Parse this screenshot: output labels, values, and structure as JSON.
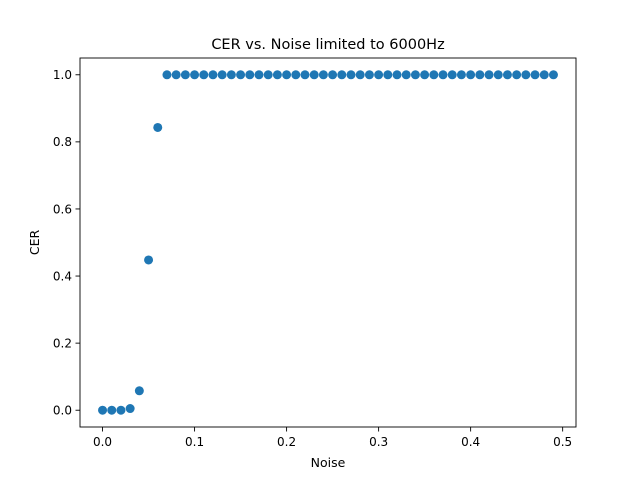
{
  "chart_data": {
    "type": "scatter",
    "title": "CER vs. Noise limited to 6000Hz",
    "xlabel": "Noise",
    "ylabel": "CER",
    "xlim": [
      -0.0245,
      0.5145
    ],
    "ylim": [
      -0.05,
      1.05
    ],
    "xticks": [
      0.0,
      0.1,
      0.2,
      0.3,
      0.4,
      0.5
    ],
    "xtick_labels": [
      "0.0",
      "0.1",
      "0.2",
      "0.3",
      "0.4",
      "0.5"
    ],
    "yticks": [
      0.0,
      0.2,
      0.4,
      0.6,
      0.8,
      1.0
    ],
    "ytick_labels": [
      "0.0",
      "0.2",
      "0.4",
      "0.6",
      "0.8",
      "1.0"
    ],
    "grid": false,
    "marker_color": "#1f77b4",
    "series": [
      {
        "x": [
          0.0,
          0.01,
          0.02,
          0.03,
          0.04,
          0.05,
          0.06,
          0.07,
          0.08,
          0.09,
          0.1,
          0.11,
          0.12,
          0.13,
          0.14,
          0.15,
          0.16,
          0.17,
          0.18,
          0.19,
          0.2,
          0.21,
          0.22,
          0.23,
          0.24,
          0.25,
          0.26,
          0.27,
          0.28,
          0.29,
          0.3,
          0.31,
          0.32,
          0.33,
          0.34,
          0.35,
          0.36,
          0.37,
          0.38,
          0.39,
          0.4,
          0.41,
          0.42,
          0.43,
          0.44,
          0.45,
          0.46,
          0.47,
          0.48,
          0.49
        ],
        "y": [
          0.0,
          0.0,
          0.0,
          0.005,
          0.058,
          0.448,
          0.843,
          1.0,
          1.0,
          1.0,
          1.0,
          1.0,
          1.0,
          1.0,
          1.0,
          1.0,
          1.0,
          1.0,
          1.0,
          1.0,
          1.0,
          1.0,
          1.0,
          1.0,
          1.0,
          1.0,
          1.0,
          1.0,
          1.0,
          1.0,
          1.0,
          1.0,
          1.0,
          1.0,
          1.0,
          1.0,
          1.0,
          1.0,
          1.0,
          1.0,
          1.0,
          1.0,
          1.0,
          1.0,
          1.0,
          1.0,
          1.0,
          1.0,
          1.0,
          1.0
        ]
      }
    ]
  }
}
